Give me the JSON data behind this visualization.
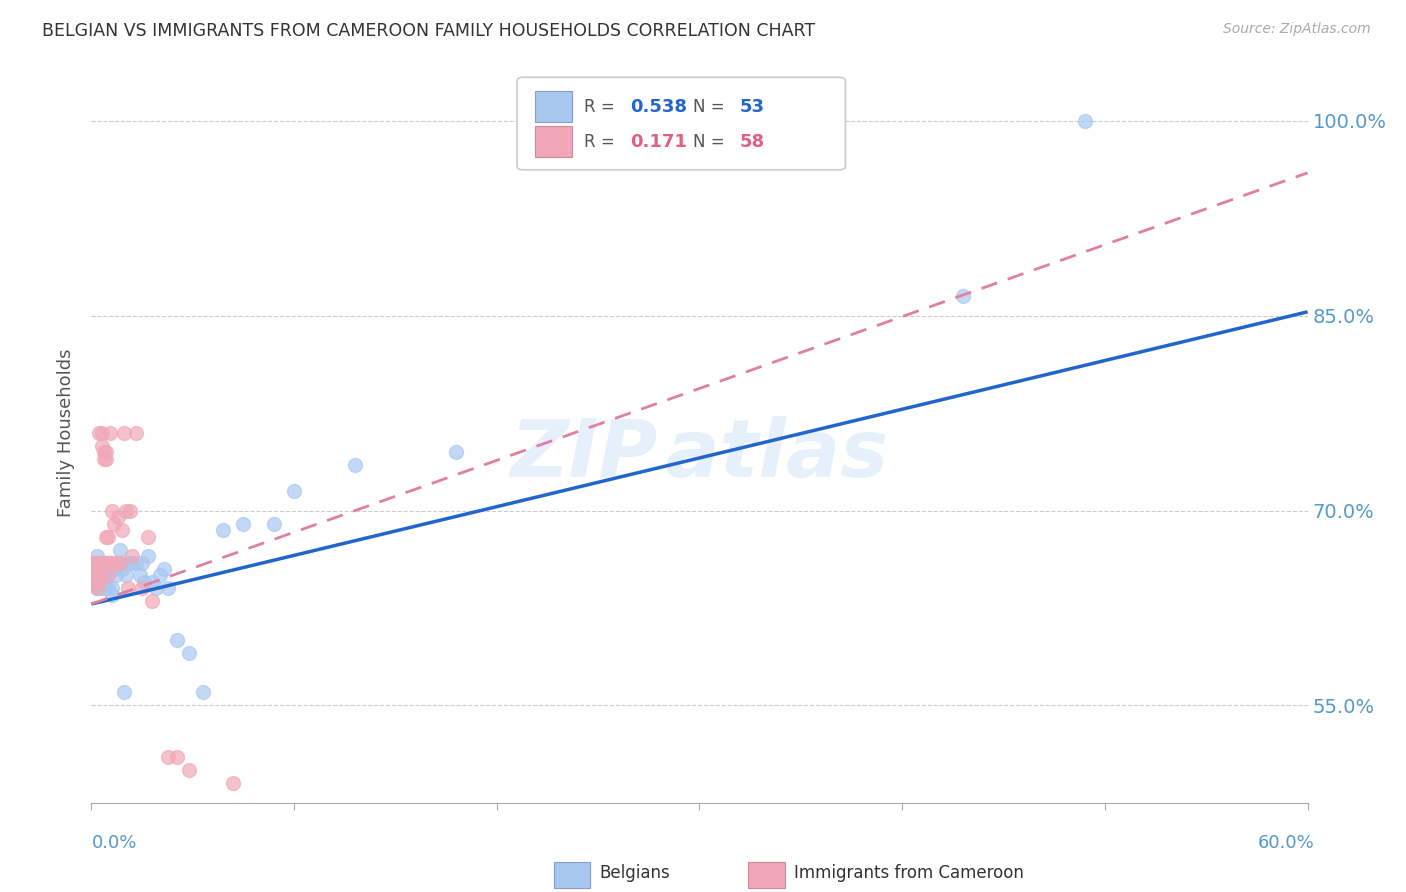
{
  "title": "BELGIAN VS IMMIGRANTS FROM CAMEROON FAMILY HOUSEHOLDS CORRELATION CHART",
  "source": "Source: ZipAtlas.com",
  "ylabel": "Family Households",
  "yticks": [
    0.55,
    0.7,
    0.85,
    1.0
  ],
  "ytick_labels": [
    "55.0%",
    "70.0%",
    "85.0%",
    "100.0%"
  ],
  "xmin": 0.0,
  "xmax": 0.6,
  "ymin": 0.475,
  "ymax": 1.045,
  "belgian_R": 0.538,
  "belgian_N": 53,
  "cameroon_R": 0.171,
  "cameroon_N": 58,
  "belgian_color": "#a8c8f0",
  "cameroon_color": "#f0a8b8",
  "belgian_line_color": "#2266cc",
  "cameroon_line_color": "#e080a0",
  "background_color": "#ffffff",
  "grid_color": "#cccccc",
  "axis_label_color": "#5599cc",
  "title_color": "#333333",
  "belgians_x": [
    0.001,
    0.001,
    0.002,
    0.002,
    0.003,
    0.003,
    0.003,
    0.004,
    0.004,
    0.004,
    0.005,
    0.005,
    0.005,
    0.006,
    0.006,
    0.007,
    0.007,
    0.007,
    0.008,
    0.008,
    0.009,
    0.01,
    0.01,
    0.011,
    0.012,
    0.013,
    0.014,
    0.015,
    0.016,
    0.017,
    0.018,
    0.02,
    0.022,
    0.024,
    0.025,
    0.026,
    0.028,
    0.03,
    0.032,
    0.034,
    0.036,
    0.038,
    0.042,
    0.048,
    0.055,
    0.065,
    0.075,
    0.09,
    0.1,
    0.13,
    0.18,
    0.43,
    0.49
  ],
  "belgians_y": [
    0.66,
    0.65,
    0.655,
    0.645,
    0.65,
    0.64,
    0.665,
    0.655,
    0.64,
    0.66,
    0.655,
    0.64,
    0.65,
    0.66,
    0.645,
    0.66,
    0.648,
    0.64,
    0.655,
    0.64,
    0.66,
    0.64,
    0.635,
    0.655,
    0.65,
    0.66,
    0.67,
    0.655,
    0.56,
    0.65,
    0.66,
    0.66,
    0.66,
    0.65,
    0.66,
    0.645,
    0.665,
    0.645,
    0.64,
    0.65,
    0.655,
    0.64,
    0.6,
    0.59,
    0.56,
    0.685,
    0.69,
    0.69,
    0.715,
    0.735,
    0.745,
    0.865,
    1.0
  ],
  "cameroon_x": [
    0.001,
    0.001,
    0.001,
    0.001,
    0.001,
    0.001,
    0.002,
    0.002,
    0.002,
    0.002,
    0.002,
    0.002,
    0.003,
    0.003,
    0.003,
    0.003,
    0.003,
    0.004,
    0.004,
    0.004,
    0.004,
    0.004,
    0.005,
    0.005,
    0.005,
    0.005,
    0.006,
    0.006,
    0.006,
    0.007,
    0.007,
    0.007,
    0.007,
    0.008,
    0.008,
    0.008,
    0.009,
    0.009,
    0.01,
    0.01,
    0.011,
    0.012,
    0.013,
    0.014,
    0.015,
    0.016,
    0.017,
    0.018,
    0.019,
    0.02,
    0.022,
    0.025,
    0.028,
    0.03,
    0.038,
    0.042,
    0.048,
    0.07
  ],
  "cameroon_y": [
    0.66,
    0.66,
    0.655,
    0.65,
    0.65,
    0.645,
    0.66,
    0.655,
    0.65,
    0.645,
    0.66,
    0.655,
    0.65,
    0.65,
    0.645,
    0.64,
    0.66,
    0.655,
    0.65,
    0.645,
    0.76,
    0.66,
    0.76,
    0.66,
    0.75,
    0.66,
    0.745,
    0.74,
    0.66,
    0.745,
    0.74,
    0.68,
    0.66,
    0.68,
    0.66,
    0.65,
    0.76,
    0.66,
    0.7,
    0.66,
    0.69,
    0.66,
    0.695,
    0.66,
    0.685,
    0.76,
    0.7,
    0.64,
    0.7,
    0.665,
    0.76,
    0.64,
    0.68,
    0.63,
    0.51,
    0.51,
    0.5,
    0.49
  ],
  "belgian_trend": [
    0.628,
    0.853
  ],
  "cameroon_trend": [
    0.628,
    0.96
  ],
  "legend_R1": "0.538",
  "legend_N1": "53",
  "legend_R2": "0.171",
  "legend_N2": "58"
}
